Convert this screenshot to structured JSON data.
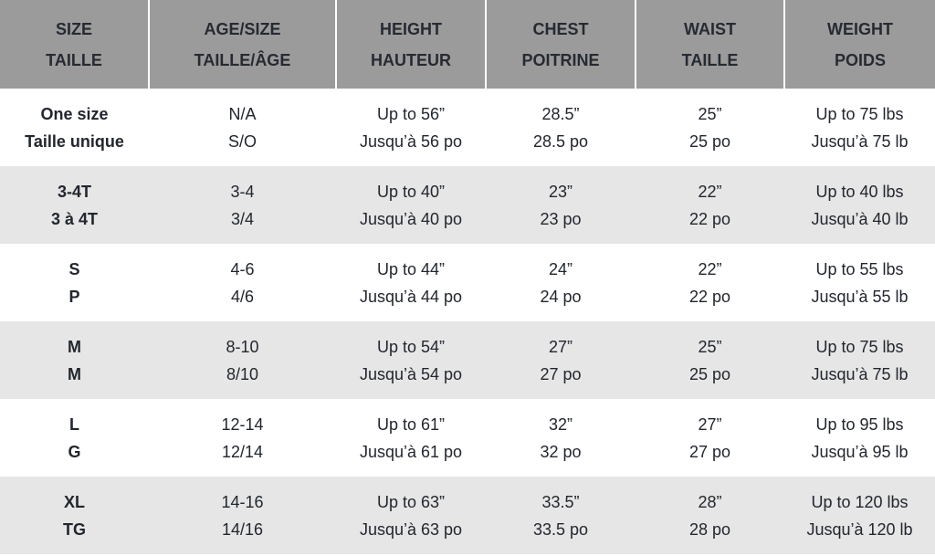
{
  "headers": [
    {
      "en": "SIZE",
      "fr": "TAILLE"
    },
    {
      "en": "AGE/SIZE",
      "fr": "TAILLE/ÂGE"
    },
    {
      "en": "HEIGHT",
      "fr": "HAUTEUR"
    },
    {
      "en": "CHEST",
      "fr": "POITRINE"
    },
    {
      "en": "WAIST",
      "fr": "TAILLE"
    },
    {
      "en": "WEIGHT",
      "fr": "POIDS"
    }
  ],
  "rows": [
    [
      {
        "en": "One size",
        "fr": "Taille unique"
      },
      {
        "en": "N/A",
        "fr": "S/O"
      },
      {
        "en": "Up to 56”",
        "fr": "Jusqu’à 56 po"
      },
      {
        "en": "28.5”",
        "fr": "28.5 po"
      },
      {
        "en": "25”",
        "fr": "25 po"
      },
      {
        "en": "Up to 75 lbs",
        "fr": "Jusqu’à 75 lb"
      }
    ],
    [
      {
        "en": "3-4T",
        "fr": "3 à 4T"
      },
      {
        "en": "3-4",
        "fr": "3/4"
      },
      {
        "en": "Up to 40”",
        "fr": "Jusqu’à 40 po"
      },
      {
        "en": "23”",
        "fr": "23 po"
      },
      {
        "en": "22”",
        "fr": "22 po"
      },
      {
        "en": "Up to 40 lbs",
        "fr": "Jusqu’à 40 lb"
      }
    ],
    [
      {
        "en": "S",
        "fr": "P"
      },
      {
        "en": "4-6",
        "fr": "4/6"
      },
      {
        "en": "Up to 44”",
        "fr": "Jusqu’à 44 po"
      },
      {
        "en": "24”",
        "fr": "24 po"
      },
      {
        "en": "22”",
        "fr": "22 po"
      },
      {
        "en": "Up to 55 lbs",
        "fr": "Jusqu’à 55 lb"
      }
    ],
    [
      {
        "en": "M",
        "fr": "M"
      },
      {
        "en": "8-10",
        "fr": "8/10"
      },
      {
        "en": "Up to 54”",
        "fr": "Jusqu’à 54 po"
      },
      {
        "en": "27”",
        "fr": "27 po"
      },
      {
        "en": "25”",
        "fr": "25 po"
      },
      {
        "en": "Up to 75 lbs",
        "fr": "Jusqu’à 75 lb"
      }
    ],
    [
      {
        "en": "L",
        "fr": "G"
      },
      {
        "en": "12-14",
        "fr": "12/14"
      },
      {
        "en": "Up to 61”",
        "fr": "Jusqu’à 61 po"
      },
      {
        "en": "32”",
        "fr": "32 po"
      },
      {
        "en": "27”",
        "fr": "27 po"
      },
      {
        "en": "Up to 95 lbs",
        "fr": "Jusqu’à 95 lb"
      }
    ],
    [
      {
        "en": "XL",
        "fr": "TG"
      },
      {
        "en": "14-16",
        "fr": "14/16"
      },
      {
        "en": "Up to 63”",
        "fr": "Jusqu’à 63 po"
      },
      {
        "en": "33.5”",
        "fr": "33.5 po"
      },
      {
        "en": "28”",
        "fr": "28 po"
      },
      {
        "en": "Up to 120 lbs",
        "fr": "Jusqu’à 120 lb"
      }
    ]
  ],
  "colors": {
    "header_bg": "#9b9b9b",
    "alt_row_bg": "#e6e6e6",
    "text": "#22262e"
  }
}
